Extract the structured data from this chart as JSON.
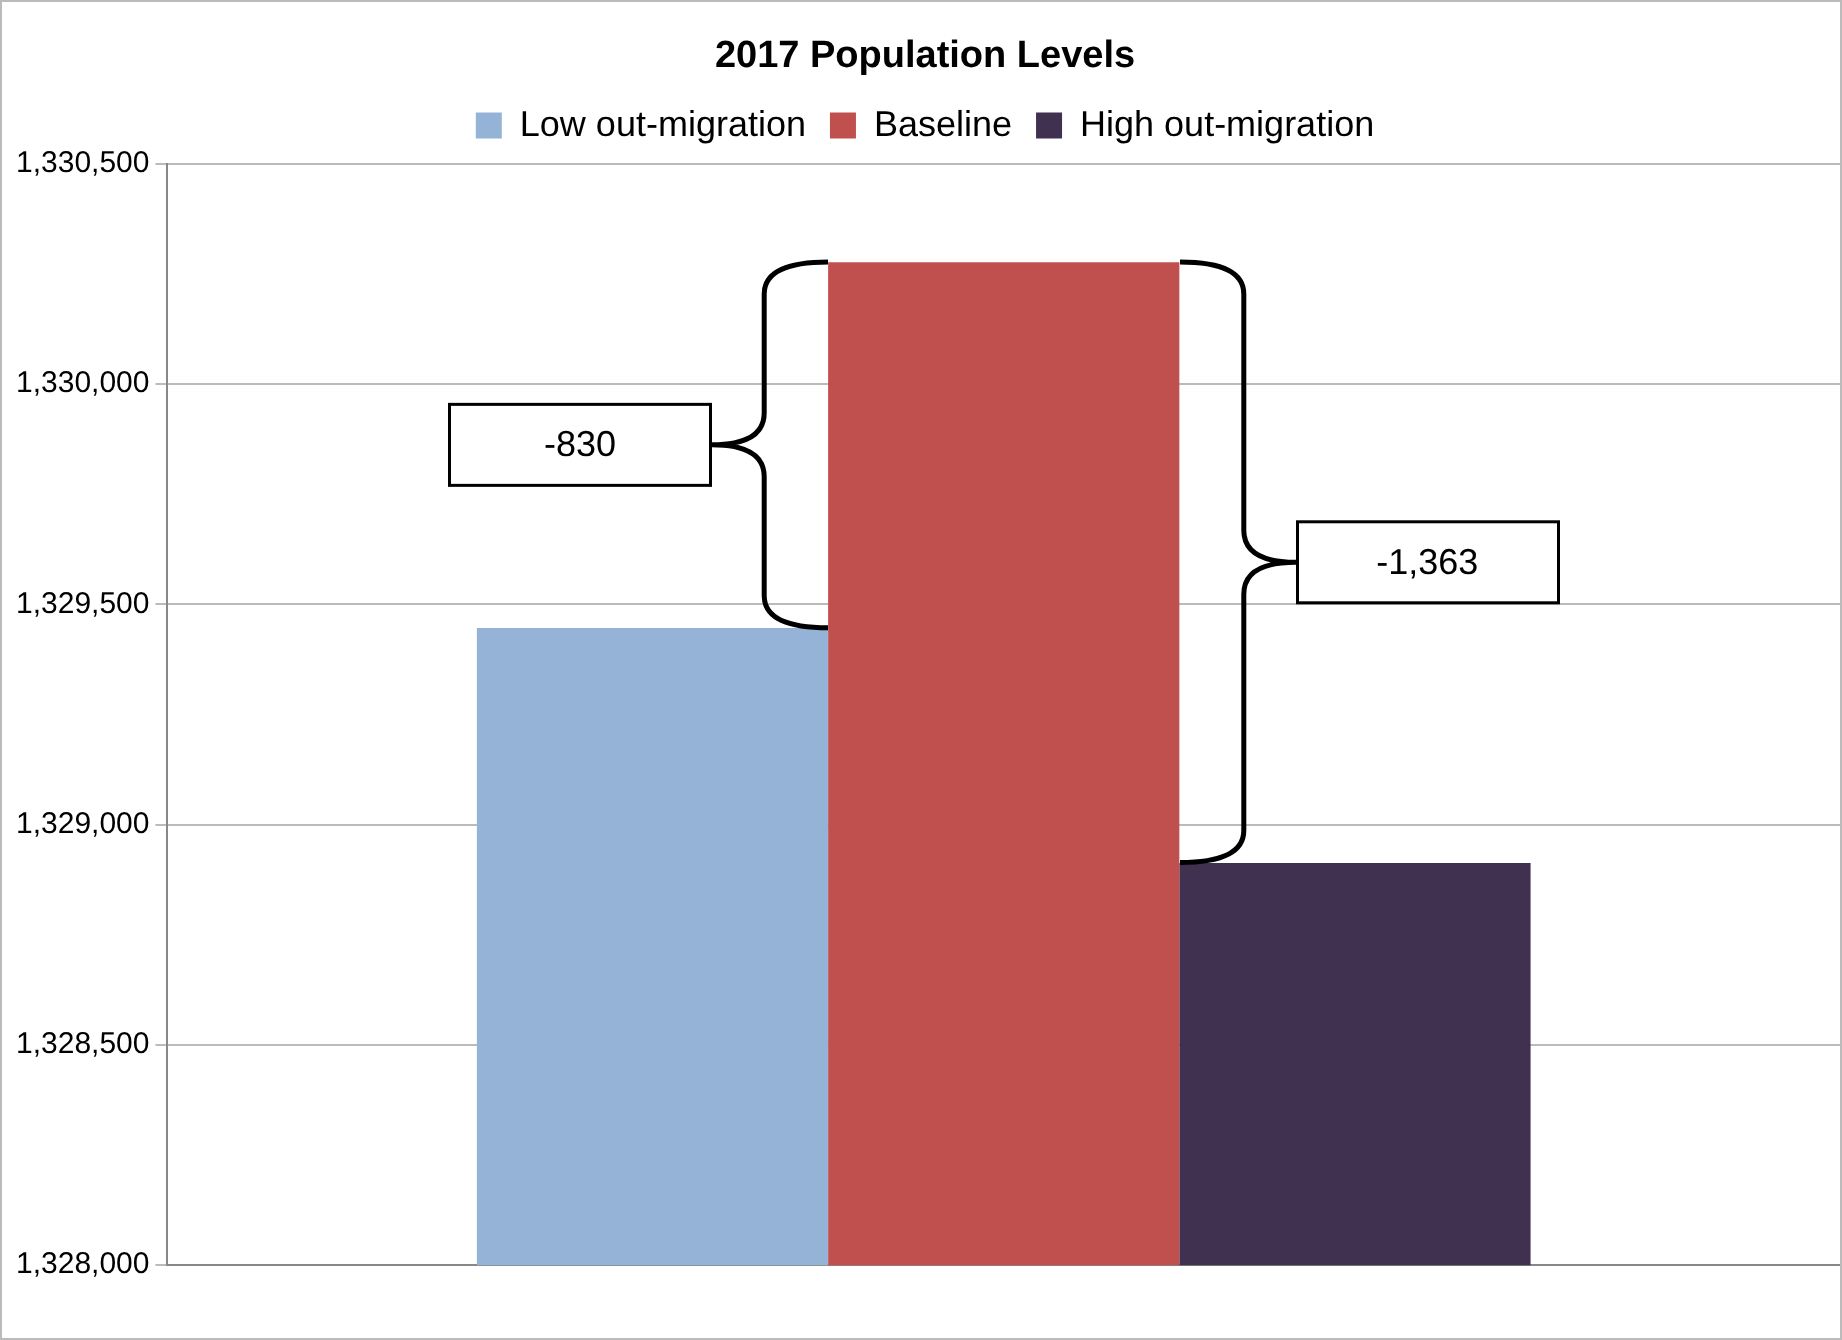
{
  "chart_data": {
    "type": "bar",
    "title": "2017 Population Levels",
    "categories": [
      null
    ],
    "series": [
      {
        "name": "Low out-migration",
        "color": "#95b3d7",
        "values": [
          1329446
        ]
      },
      {
        "name": "Baseline",
        "color": "#c0504d",
        "values": [
          1330276
        ]
      },
      {
        "name": "High out-migration",
        "color": "#403151",
        "values": [
          1328913
        ]
      }
    ],
    "ylim": [
      1328000,
      1330500
    ],
    "yticks": [
      {
        "value": 1328000,
        "label": "1,328,000"
      },
      {
        "value": 1328500,
        "label": "1,328,500"
      },
      {
        "value": 1329000,
        "label": "1,329,000"
      },
      {
        "value": 1329500,
        "label": "1,329,500"
      },
      {
        "value": 1330000,
        "label": "1,330,000"
      },
      {
        "value": 1330500,
        "label": "1,330,500"
      }
    ],
    "grid": "y",
    "legend": "top",
    "annotations": [
      "-830",
      "-1,363"
    ]
  }
}
